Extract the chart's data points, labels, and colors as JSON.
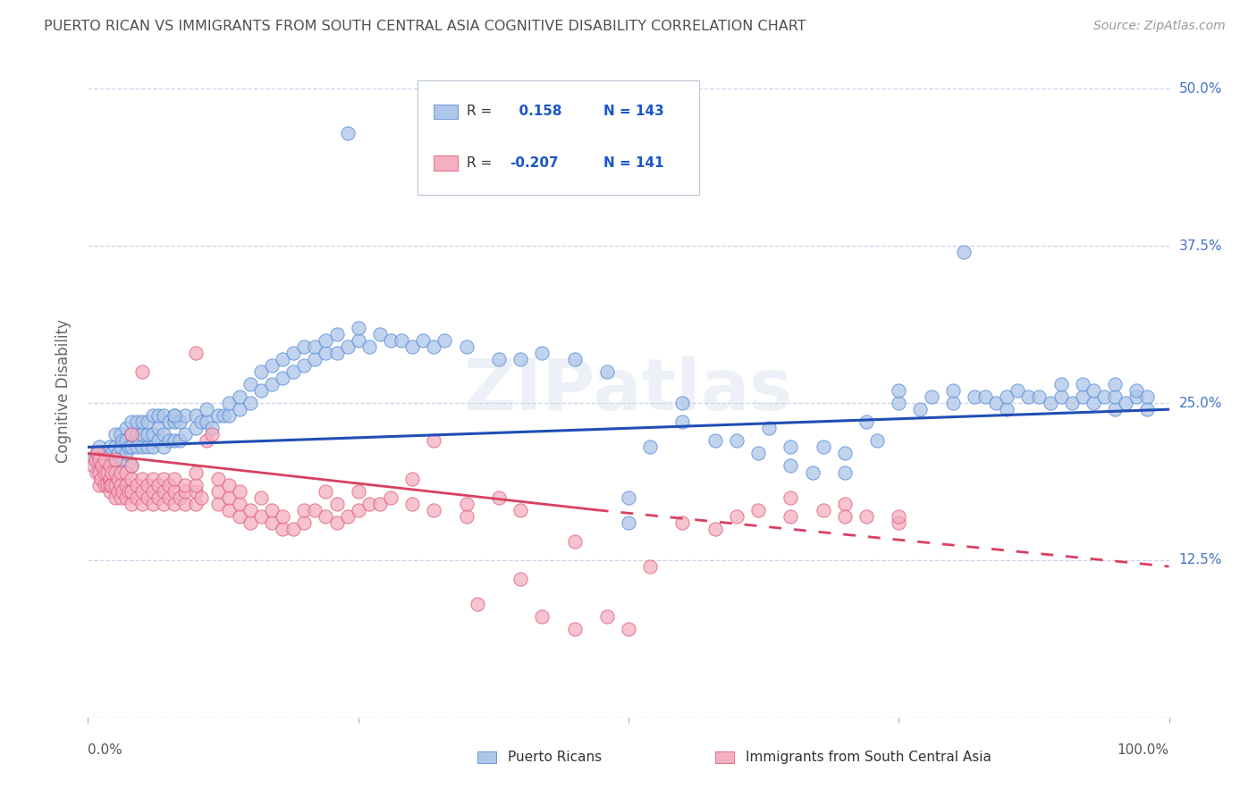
{
  "title": "PUERTO RICAN VS IMMIGRANTS FROM SOUTH CENTRAL ASIA COGNITIVE DISABILITY CORRELATION CHART",
  "source": "Source: ZipAtlas.com",
  "ylabel": "Cognitive Disability",
  "yticks": [
    0.0,
    0.125,
    0.25,
    0.375,
    0.5
  ],
  "ytick_labels": [
    "",
    "12.5%",
    "25.0%",
    "37.5%",
    "50.0%"
  ],
  "xlim": [
    0.0,
    1.0
  ],
  "ylim": [
    0.0,
    0.52
  ],
  "blue_R": 0.158,
  "blue_N": 143,
  "pink_R": -0.207,
  "pink_N": 141,
  "legend_label_blue": "Puerto Ricans",
  "legend_label_pink": "Immigrants from South Central Asia",
  "blue_color": "#aec6e8",
  "pink_color": "#f4afc0",
  "blue_edge_color": "#5b8dd9",
  "pink_edge_color": "#e06080",
  "blue_line_color": "#1f4eb5",
  "pink_line_color": "#d94060",
  "watermark": "ZIPatlas",
  "bg_color": "#ffffff",
  "grid_color": "#c8d4e8",
  "title_color": "#505050",
  "right_label_color": "#4472c4",
  "blue_scatter": [
    [
      0.005,
      0.205
    ],
    [
      0.008,
      0.21
    ],
    [
      0.01,
      0.195
    ],
    [
      0.01,
      0.205
    ],
    [
      0.01,
      0.215
    ],
    [
      0.012,
      0.2
    ],
    [
      0.015,
      0.21
    ],
    [
      0.015,
      0.195
    ],
    [
      0.018,
      0.205
    ],
    [
      0.02,
      0.195
    ],
    [
      0.02,
      0.205
    ],
    [
      0.02,
      0.215
    ],
    [
      0.022,
      0.21
    ],
    [
      0.025,
      0.2
    ],
    [
      0.025,
      0.215
    ],
    [
      0.025,
      0.225
    ],
    [
      0.028,
      0.21
    ],
    [
      0.03,
      0.205
    ],
    [
      0.03,
      0.215
    ],
    [
      0.03,
      0.225
    ],
    [
      0.032,
      0.22
    ],
    [
      0.035,
      0.21
    ],
    [
      0.035,
      0.22
    ],
    [
      0.035,
      0.23
    ],
    [
      0.038,
      0.215
    ],
    [
      0.04,
      0.2
    ],
    [
      0.04,
      0.215
    ],
    [
      0.04,
      0.225
    ],
    [
      0.04,
      0.235
    ],
    [
      0.045,
      0.215
    ],
    [
      0.045,
      0.225
    ],
    [
      0.045,
      0.235
    ],
    [
      0.048,
      0.22
    ],
    [
      0.05,
      0.215
    ],
    [
      0.05,
      0.225
    ],
    [
      0.05,
      0.235
    ],
    [
      0.055,
      0.215
    ],
    [
      0.055,
      0.225
    ],
    [
      0.055,
      0.235
    ],
    [
      0.06,
      0.215
    ],
    [
      0.06,
      0.225
    ],
    [
      0.06,
      0.24
    ],
    [
      0.065,
      0.22
    ],
    [
      0.065,
      0.23
    ],
    [
      0.065,
      0.24
    ],
    [
      0.07,
      0.215
    ],
    [
      0.07,
      0.225
    ],
    [
      0.07,
      0.24
    ],
    [
      0.075,
      0.22
    ],
    [
      0.075,
      0.235
    ],
    [
      0.08,
      0.22
    ],
    [
      0.08,
      0.235
    ],
    [
      0.08,
      0.24
    ],
    [
      0.085,
      0.22
    ],
    [
      0.085,
      0.235
    ],
    [
      0.09,
      0.225
    ],
    [
      0.09,
      0.24
    ],
    [
      0.1,
      0.23
    ],
    [
      0.1,
      0.24
    ],
    [
      0.105,
      0.235
    ],
    [
      0.11,
      0.235
    ],
    [
      0.11,
      0.245
    ],
    [
      0.115,
      0.23
    ],
    [
      0.12,
      0.24
    ],
    [
      0.125,
      0.24
    ],
    [
      0.13,
      0.24
    ],
    [
      0.13,
      0.25
    ],
    [
      0.14,
      0.245
    ],
    [
      0.14,
      0.255
    ],
    [
      0.15,
      0.25
    ],
    [
      0.15,
      0.265
    ],
    [
      0.16,
      0.26
    ],
    [
      0.16,
      0.275
    ],
    [
      0.17,
      0.265
    ],
    [
      0.17,
      0.28
    ],
    [
      0.18,
      0.27
    ],
    [
      0.18,
      0.285
    ],
    [
      0.19,
      0.275
    ],
    [
      0.19,
      0.29
    ],
    [
      0.2,
      0.28
    ],
    [
      0.2,
      0.295
    ],
    [
      0.21,
      0.285
    ],
    [
      0.21,
      0.295
    ],
    [
      0.22,
      0.29
    ],
    [
      0.22,
      0.3
    ],
    [
      0.23,
      0.29
    ],
    [
      0.23,
      0.305
    ],
    [
      0.24,
      0.295
    ],
    [
      0.25,
      0.3
    ],
    [
      0.25,
      0.31
    ],
    [
      0.26,
      0.295
    ],
    [
      0.27,
      0.305
    ],
    [
      0.28,
      0.3
    ],
    [
      0.29,
      0.3
    ],
    [
      0.3,
      0.295
    ],
    [
      0.31,
      0.3
    ],
    [
      0.32,
      0.295
    ],
    [
      0.33,
      0.3
    ],
    [
      0.35,
      0.295
    ],
    [
      0.38,
      0.285
    ],
    [
      0.4,
      0.285
    ],
    [
      0.42,
      0.29
    ],
    [
      0.45,
      0.285
    ],
    [
      0.48,
      0.275
    ],
    [
      0.5,
      0.155
    ],
    [
      0.5,
      0.175
    ],
    [
      0.52,
      0.215
    ],
    [
      0.55,
      0.235
    ],
    [
      0.55,
      0.25
    ],
    [
      0.58,
      0.22
    ],
    [
      0.6,
      0.22
    ],
    [
      0.62,
      0.21
    ],
    [
      0.63,
      0.23
    ],
    [
      0.65,
      0.215
    ],
    [
      0.65,
      0.2
    ],
    [
      0.67,
      0.195
    ],
    [
      0.68,
      0.215
    ],
    [
      0.7,
      0.195
    ],
    [
      0.7,
      0.21
    ],
    [
      0.72,
      0.235
    ],
    [
      0.73,
      0.22
    ],
    [
      0.75,
      0.25
    ],
    [
      0.75,
      0.26
    ],
    [
      0.77,
      0.245
    ],
    [
      0.78,
      0.255
    ],
    [
      0.8,
      0.25
    ],
    [
      0.8,
      0.26
    ],
    [
      0.82,
      0.255
    ],
    [
      0.83,
      0.255
    ],
    [
      0.84,
      0.25
    ],
    [
      0.85,
      0.245
    ],
    [
      0.85,
      0.255
    ],
    [
      0.86,
      0.26
    ],
    [
      0.87,
      0.255
    ],
    [
      0.88,
      0.255
    ],
    [
      0.89,
      0.25
    ],
    [
      0.9,
      0.255
    ],
    [
      0.9,
      0.265
    ],
    [
      0.91,
      0.25
    ],
    [
      0.92,
      0.255
    ],
    [
      0.92,
      0.265
    ],
    [
      0.93,
      0.25
    ],
    [
      0.93,
      0.26
    ],
    [
      0.94,
      0.255
    ],
    [
      0.95,
      0.245
    ],
    [
      0.95,
      0.255
    ],
    [
      0.95,
      0.265
    ],
    [
      0.96,
      0.25
    ],
    [
      0.97,
      0.255
    ],
    [
      0.97,
      0.26
    ],
    [
      0.98,
      0.245
    ],
    [
      0.98,
      0.255
    ],
    [
      0.24,
      0.465
    ],
    [
      0.81,
      0.37
    ],
    [
      0.08,
      0.24
    ]
  ],
  "pink_scatter": [
    [
      0.005,
      0.2
    ],
    [
      0.007,
      0.205
    ],
    [
      0.008,
      0.195
    ],
    [
      0.009,
      0.21
    ],
    [
      0.01,
      0.185
    ],
    [
      0.01,
      0.195
    ],
    [
      0.01,
      0.205
    ],
    [
      0.012,
      0.19
    ],
    [
      0.013,
      0.2
    ],
    [
      0.015,
      0.185
    ],
    [
      0.015,
      0.195
    ],
    [
      0.015,
      0.205
    ],
    [
      0.018,
      0.185
    ],
    [
      0.018,
      0.195
    ],
    [
      0.02,
      0.18
    ],
    [
      0.02,
      0.19
    ],
    [
      0.02,
      0.2
    ],
    [
      0.02,
      0.185
    ],
    [
      0.022,
      0.185
    ],
    [
      0.022,
      0.195
    ],
    [
      0.025,
      0.175
    ],
    [
      0.025,
      0.185
    ],
    [
      0.025,
      0.195
    ],
    [
      0.025,
      0.205
    ],
    [
      0.028,
      0.18
    ],
    [
      0.028,
      0.19
    ],
    [
      0.03,
      0.175
    ],
    [
      0.03,
      0.185
    ],
    [
      0.03,
      0.195
    ],
    [
      0.032,
      0.18
    ],
    [
      0.035,
      0.175
    ],
    [
      0.035,
      0.185
    ],
    [
      0.035,
      0.195
    ],
    [
      0.038,
      0.18
    ],
    [
      0.04,
      0.17
    ],
    [
      0.04,
      0.18
    ],
    [
      0.04,
      0.19
    ],
    [
      0.04,
      0.2
    ],
    [
      0.04,
      0.225
    ],
    [
      0.045,
      0.175
    ],
    [
      0.045,
      0.185
    ],
    [
      0.05,
      0.17
    ],
    [
      0.05,
      0.18
    ],
    [
      0.05,
      0.19
    ],
    [
      0.05,
      0.275
    ],
    [
      0.055,
      0.175
    ],
    [
      0.055,
      0.185
    ],
    [
      0.06,
      0.17
    ],
    [
      0.06,
      0.18
    ],
    [
      0.06,
      0.19
    ],
    [
      0.065,
      0.175
    ],
    [
      0.065,
      0.185
    ],
    [
      0.07,
      0.17
    ],
    [
      0.07,
      0.18
    ],
    [
      0.07,
      0.19
    ],
    [
      0.075,
      0.175
    ],
    [
      0.075,
      0.185
    ],
    [
      0.08,
      0.17
    ],
    [
      0.08,
      0.18
    ],
    [
      0.08,
      0.19
    ],
    [
      0.085,
      0.175
    ],
    [
      0.09,
      0.17
    ],
    [
      0.09,
      0.18
    ],
    [
      0.09,
      0.185
    ],
    [
      0.1,
      0.17
    ],
    [
      0.1,
      0.18
    ],
    [
      0.1,
      0.185
    ],
    [
      0.1,
      0.195
    ],
    [
      0.1,
      0.29
    ],
    [
      0.105,
      0.175
    ],
    [
      0.11,
      0.22
    ],
    [
      0.115,
      0.225
    ],
    [
      0.12,
      0.17
    ],
    [
      0.12,
      0.18
    ],
    [
      0.12,
      0.19
    ],
    [
      0.13,
      0.165
    ],
    [
      0.13,
      0.175
    ],
    [
      0.13,
      0.185
    ],
    [
      0.14,
      0.16
    ],
    [
      0.14,
      0.17
    ],
    [
      0.14,
      0.18
    ],
    [
      0.15,
      0.155
    ],
    [
      0.15,
      0.165
    ],
    [
      0.16,
      0.16
    ],
    [
      0.16,
      0.175
    ],
    [
      0.17,
      0.155
    ],
    [
      0.17,
      0.165
    ],
    [
      0.18,
      0.15
    ],
    [
      0.18,
      0.16
    ],
    [
      0.19,
      0.15
    ],
    [
      0.2,
      0.155
    ],
    [
      0.2,
      0.165
    ],
    [
      0.21,
      0.165
    ],
    [
      0.22,
      0.16
    ],
    [
      0.22,
      0.18
    ],
    [
      0.23,
      0.155
    ],
    [
      0.23,
      0.17
    ],
    [
      0.24,
      0.16
    ],
    [
      0.25,
      0.165
    ],
    [
      0.25,
      0.18
    ],
    [
      0.26,
      0.17
    ],
    [
      0.27,
      0.17
    ],
    [
      0.28,
      0.175
    ],
    [
      0.3,
      0.17
    ],
    [
      0.3,
      0.19
    ],
    [
      0.32,
      0.165
    ],
    [
      0.32,
      0.22
    ],
    [
      0.35,
      0.16
    ],
    [
      0.35,
      0.17
    ],
    [
      0.36,
      0.09
    ],
    [
      0.38,
      0.175
    ],
    [
      0.4,
      0.11
    ],
    [
      0.4,
      0.165
    ],
    [
      0.42,
      0.08
    ],
    [
      0.45,
      0.07
    ],
    [
      0.45,
      0.14
    ],
    [
      0.48,
      0.08
    ],
    [
      0.5,
      0.07
    ],
    [
      0.52,
      0.12
    ],
    [
      0.55,
      0.155
    ],
    [
      0.58,
      0.15
    ],
    [
      0.6,
      0.16
    ],
    [
      0.62,
      0.165
    ],
    [
      0.65,
      0.16
    ],
    [
      0.65,
      0.175
    ],
    [
      0.68,
      0.165
    ],
    [
      0.7,
      0.17
    ],
    [
      0.7,
      0.16
    ],
    [
      0.72,
      0.16
    ],
    [
      0.75,
      0.155
    ],
    [
      0.75,
      0.16
    ]
  ],
  "blue_line": [
    [
      0.0,
      0.215
    ],
    [
      1.0,
      0.245
    ]
  ],
  "pink_line_solid": [
    [
      0.0,
      0.21
    ],
    [
      0.47,
      0.165
    ]
  ],
  "pink_line_dashed": [
    [
      0.47,
      0.165
    ],
    [
      1.0,
      0.12
    ]
  ]
}
